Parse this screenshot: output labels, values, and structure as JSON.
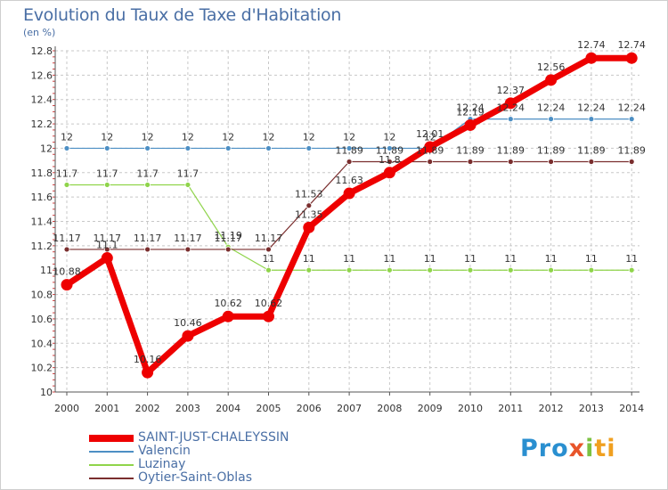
{
  "header": {
    "title": "Evolution du Taux de Taxe d'Habitation",
    "subtitle": "(en %)"
  },
  "chart_data": {
    "type": "line",
    "title": "Evolution du Taux de Taxe d'Habitation",
    "ylabel": "(en %)",
    "xlabel": "",
    "x": [
      2000,
      2001,
      2002,
      2003,
      2004,
      2005,
      2006,
      2007,
      2008,
      2009,
      2010,
      2011,
      2012,
      2013,
      2014
    ],
    "ylim": [
      10,
      12.8
    ],
    "yticks": [
      "10",
      "10.2",
      "10.4",
      "10.6",
      "10.8",
      "11",
      "11.2",
      "11.4",
      "11.6",
      "11.8",
      "12",
      "12.2",
      "12.4",
      "12.6",
      "12.8"
    ],
    "grid": true,
    "series": [
      {
        "name": "Valencin",
        "color": "#4d8fc4",
        "values": [
          12,
          12,
          12,
          12,
          12,
          12,
          12,
          12,
          12,
          12,
          12.24,
          12.24,
          12.24,
          12.24,
          12.24
        ],
        "labels": [
          "12",
          "12",
          "12",
          "12",
          "12",
          "12",
          "12",
          "12",
          "12",
          "12",
          "12.24",
          "12.24",
          "12.24",
          "12.24",
          "12.24"
        ]
      },
      {
        "name": "Luzinay",
        "color": "#8fd44a",
        "values": [
          11.7,
          11.7,
          11.7,
          11.7,
          11.19,
          11,
          11,
          11,
          11,
          11,
          11,
          11,
          11,
          11,
          11
        ],
        "labels": [
          "11.7",
          "11.7",
          "11.7",
          "11.7",
          "11.19",
          "11",
          "11",
          "11",
          "11",
          "11",
          "11",
          "11",
          "11",
          "11",
          "11"
        ]
      },
      {
        "name": "Oytier-Saint-Oblas",
        "color": "#7a2e2e",
        "values": [
          11.17,
          11.17,
          11.17,
          11.17,
          11.17,
          11.17,
          11.53,
          11.89,
          11.89,
          11.89,
          11.89,
          11.89,
          11.89,
          11.89,
          11.89
        ],
        "labels": [
          "11.17",
          "11.17",
          "11.17",
          "11.17",
          "11.17",
          "11.17",
          "11.53",
          "11.89",
          "11.89",
          "11.89",
          "11.89",
          "11.89",
          "11.89",
          "11.89",
          "11.89"
        ]
      },
      {
        "name": "SAINT-JUST-CHALEYSSIN",
        "color": "#ee0000",
        "values": [
          10.88,
          11.1,
          10.16,
          10.46,
          10.62,
          10.62,
          11.35,
          11.63,
          11.8,
          12.01,
          12.19,
          12.37,
          12.56,
          12.74,
          12.74
        ],
        "labels": [
          "10.88",
          "11.1",
          "10.16",
          "10.46",
          "10.62",
          "10.62",
          "11.35",
          "11.63",
          "11.8",
          "12.01",
          "12.19",
          "12.37",
          "12.56",
          "12.74",
          "12.74"
        ]
      }
    ]
  },
  "legend": {
    "items": [
      {
        "label": "SAINT-JUST-CHALEYSSIN",
        "color": "#ee0000"
      },
      {
        "label": "Valencin",
        "color": "#4d8fc4"
      },
      {
        "label": "Luzinay",
        "color": "#8fd44a"
      },
      {
        "label": "Oytier-Saint-Oblas",
        "color": "#7a2e2e"
      }
    ]
  },
  "logo": {
    "part1": "Pro",
    "part2": "x",
    "part3": "i",
    "part4": "ti"
  }
}
